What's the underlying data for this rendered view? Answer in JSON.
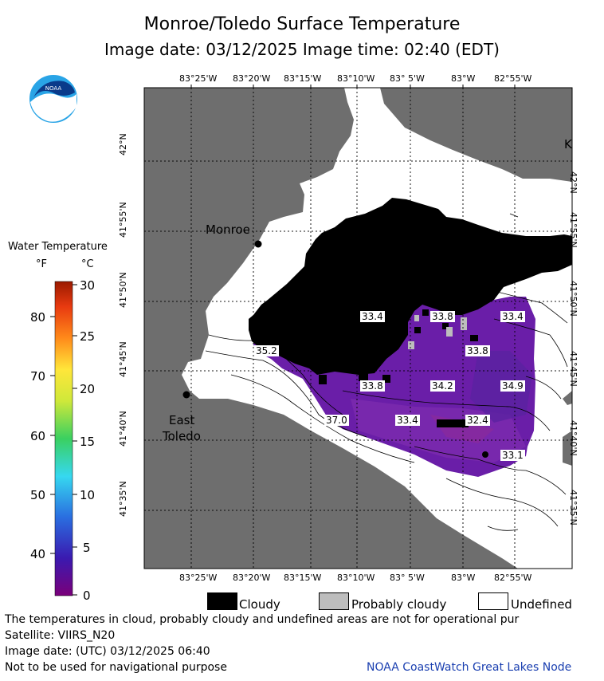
{
  "header": {
    "title": "Monroe/Toledo Surface Temperature",
    "image_date_line": "Image date: 03/12/2025    Image time: 02:40 (EDT)"
  },
  "logo": {
    "text": "NOAA"
  },
  "scale": {
    "title": "Water Temperature",
    "unit_f": "°F",
    "unit_c": "°C",
    "fahrenheit_ticks": [
      "80",
      "70",
      "60",
      "50",
      "40"
    ],
    "celsius_ticks": [
      "30",
      "25",
      "20",
      "15",
      "10",
      "5",
      "0"
    ]
  },
  "axes": {
    "top_lon": [
      "83°25'W",
      "83°20'W",
      "83°15'W",
      "83°10'W",
      "83° 5'W",
      "83°W",
      "82°55'W"
    ],
    "bottom_lon": [
      "83°25'W",
      "83°20'W",
      "83°15'W",
      "83°10'W",
      "83° 5'W",
      "83°W",
      "82°55'W"
    ],
    "lat": [
      "42°N",
      "41°55'N",
      "41°50'N",
      "41°45'N",
      "41°40'N",
      "41°35'N"
    ]
  },
  "places": {
    "monroe": "Monroe",
    "east_toledo_1": "East",
    "east_toledo_2": "Toledo",
    "edge_k": "K"
  },
  "temperatures": [
    "33.4",
    "33.8",
    "33.4",
    "35.2",
    "33.8",
    "33.8",
    "34.2",
    "34.9",
    "37.0",
    "33.4",
    "32.4",
    "33.1"
  ],
  "legend": {
    "cloudy": "Cloudy",
    "probably_cloudy": "Probably cloudy",
    "undefined": "Undefined"
  },
  "footer": {
    "line1": "The temperatures in cloud, probably cloudy and undefined areas are not for operational pur",
    "line2": "Satellite: VIIRS_N20",
    "line3": "Image date: (UTC) 03/12/2025  06:40",
    "line4": "Not to be used for navigational purpose",
    "credit": "NOAA CoastWatch Great Lakes Node"
  },
  "colors": {
    "land": "#6e6e6e",
    "cloud": "#000000",
    "undefined": "#ffffff",
    "water_cold": "#6a1ea8",
    "probably_cloudy": "#bdbdbd"
  }
}
